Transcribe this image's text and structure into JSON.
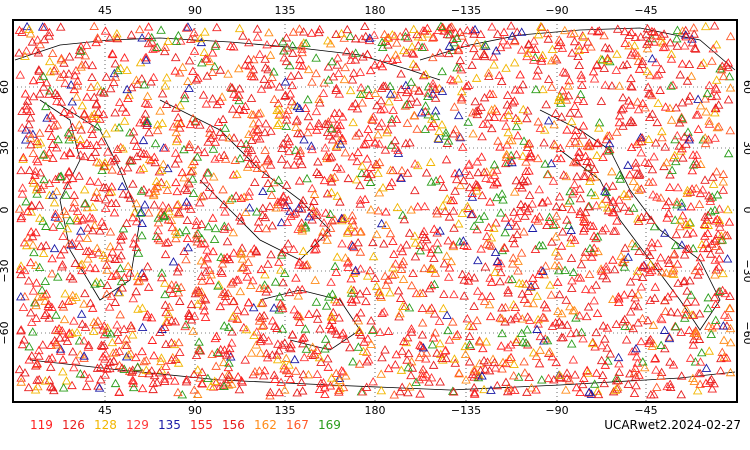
{
  "map": {
    "lon_ticks_top": [
      "45",
      "90",
      "135",
      "180",
      "−135",
      "−90",
      "−45"
    ],
    "lon_ticks_bottom": [
      "45",
      "90",
      "135",
      "180",
      "−135",
      "−90",
      "−45"
    ],
    "lat_ticks_left": [
      "60",
      "30",
      "0",
      "−30",
      "−60"
    ],
    "lat_ticks_right": [
      "60",
      "30",
      "0",
      "−30",
      "−60"
    ],
    "marker_symbol": "triangle",
    "grid": "dotted",
    "colors": {
      "frame": "#000000",
      "coast": "#000000",
      "grid": "#000000",
      "background": "#ffffff"
    }
  },
  "legend": [
    {
      "label": "119",
      "color": "#ff1f1f"
    },
    {
      "label": "126",
      "color": "#e81f1f"
    },
    {
      "label": "128",
      "color": "#f2b600"
    },
    {
      "label": "129",
      "color": "#ff3a3a"
    },
    {
      "label": "135",
      "color": "#1a1aa6"
    },
    {
      "label": "155",
      "color": "#f22424"
    },
    {
      "label": "156",
      "color": "#e51e1e"
    },
    {
      "label": "162",
      "color": "#ff8c1a"
    },
    {
      "label": "167",
      "color": "#ff5a2a"
    },
    {
      "label": "169",
      "color": "#2a9d1a"
    }
  ],
  "tag": "UCARwet2.2024-02-27"
}
